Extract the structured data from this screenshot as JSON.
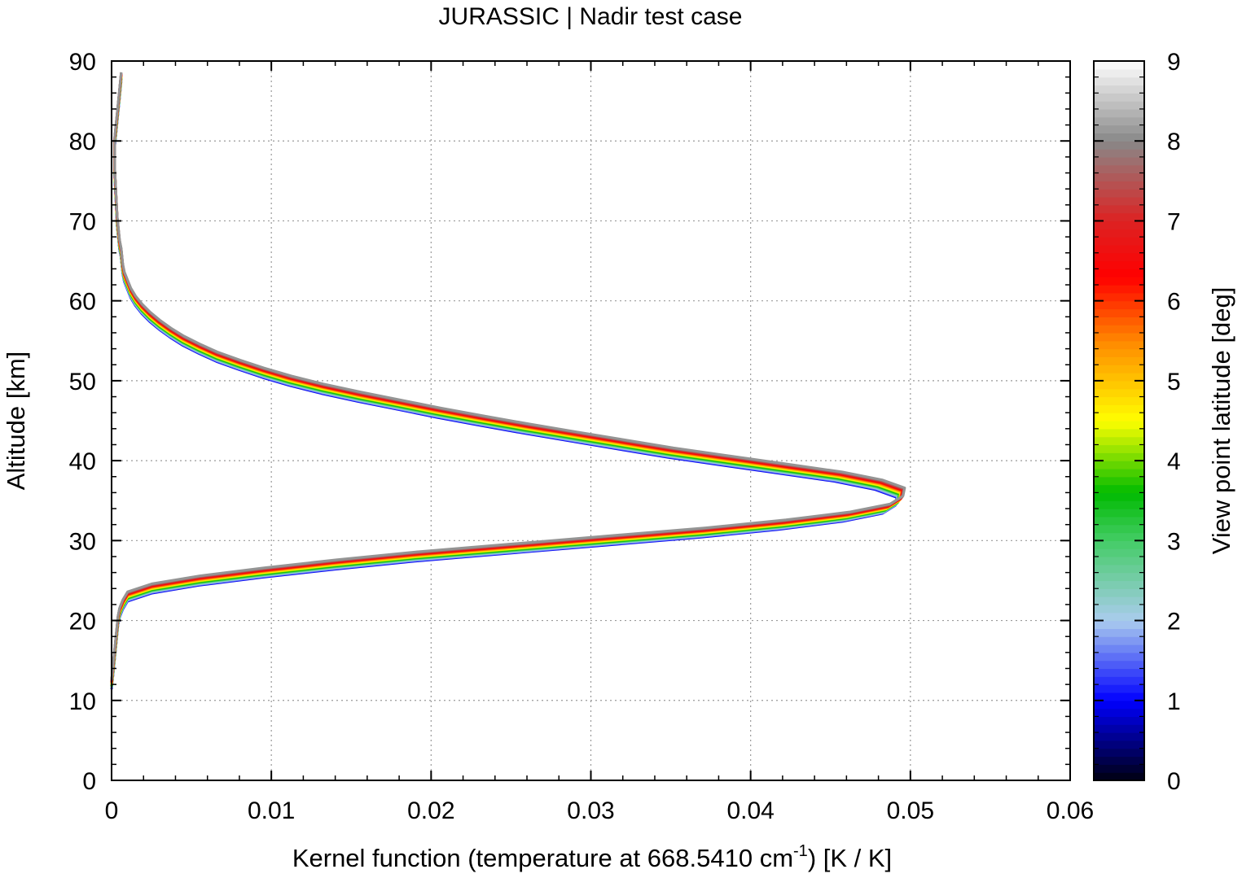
{
  "chart_data": {
    "type": "line",
    "title": "JURASSIC | Nadir test case",
    "xlabel_main": "Kernel function (temperature at 668.5410 cm",
    "xlabel_sup": "-1",
    "xlabel_tail": ") [K / K]",
    "ylabel": "Altitude [km]",
    "xlim": [
      0,
      0.06
    ],
    "ylim": [
      0,
      90
    ],
    "xticks": [
      0,
      0.01,
      0.02,
      0.03,
      0.04,
      0.05,
      0.06
    ],
    "xtick_labels": [
      "0",
      "0.01",
      "0.02",
      "0.03",
      "0.04",
      "0.05",
      "0.06"
    ],
    "yticks": [
      0,
      10,
      20,
      30,
      40,
      50,
      60,
      70,
      80,
      90
    ],
    "ytick_labels": [
      "0",
      "10",
      "20",
      "30",
      "40",
      "50",
      "60",
      "70",
      "80",
      "90"
    ],
    "grid": true,
    "colorbar": {
      "label": "View point latitude [deg]",
      "range": [
        0,
        9
      ],
      "ticks": [
        "0",
        "1",
        "2",
        "3",
        "4",
        "5",
        "6",
        "7",
        "8",
        "9"
      ],
      "stops": [
        {
          "v": 0,
          "c": "#000010"
        },
        {
          "v": 1,
          "c": "#0000ff"
        },
        {
          "v": 2,
          "c": "#aaccee"
        },
        {
          "v": 3,
          "c": "#44cc66"
        },
        {
          "v": 3.6,
          "c": "#00bb00"
        },
        {
          "v": 4.5,
          "c": "#ffff00"
        },
        {
          "v": 5.5,
          "c": "#ff8800"
        },
        {
          "v": 6.3,
          "c": "#ff0000"
        },
        {
          "v": 7,
          "c": "#dd2222"
        },
        {
          "v": 8,
          "c": "#888888"
        },
        {
          "v": 9,
          "c": "#ffffff"
        }
      ]
    },
    "base_profile": {
      "altitude": [
        12,
        14,
        16,
        18,
        20,
        21,
        22,
        23,
        24,
        25,
        26,
        27,
        28,
        29,
        30,
        31,
        32,
        33,
        34,
        35,
        36,
        37,
        38,
        39,
        40,
        41,
        42,
        43,
        44,
        45,
        46,
        47,
        48,
        49,
        50,
        51,
        52,
        53,
        54,
        55,
        56,
        57,
        58,
        59,
        60,
        61,
        62,
        63,
        64,
        65,
        66,
        67,
        68,
        69,
        70,
        72,
        74,
        76,
        78,
        80,
        82,
        84,
        86,
        88
      ],
      "kernel": [
        0,
        0.0001,
        0.0002,
        0.0003,
        0.0004,
        0.0005,
        0.0007,
        0.001,
        0.0025,
        0.0055,
        0.0095,
        0.014,
        0.019,
        0.025,
        0.031,
        0.037,
        0.042,
        0.046,
        0.0485,
        0.0493,
        0.0494,
        0.048,
        0.0455,
        0.042,
        0.0385,
        0.035,
        0.032,
        0.029,
        0.026,
        0.0232,
        0.0205,
        0.018,
        0.0155,
        0.0132,
        0.0112,
        0.0095,
        0.008,
        0.0066,
        0.0055,
        0.0045,
        0.0037,
        0.003,
        0.0024,
        0.0019,
        0.0015,
        0.0012,
        0.001,
        0.0008,
        0.0007,
        0.00065,
        0.0006,
        0.0005,
        0.00045,
        0.0004,
        0.00035,
        0.0003,
        0.00025,
        0.0002,
        0.0002,
        0.0002,
        0.0003,
        0.0004,
        0.0005,
        0.0006
      ]
    },
    "series_latitudes": [
      0.9,
      1.2,
      1.5,
      1.8,
      2.1,
      2.4,
      2.7,
      3.0,
      3.3,
      3.6,
      3.9,
      4.2,
      4.5,
      4.8,
      5.1,
      5.4,
      5.7,
      6.0,
      6.3,
      6.6,
      6.9,
      7.2,
      7.5,
      7.8,
      8.1
    ]
  }
}
